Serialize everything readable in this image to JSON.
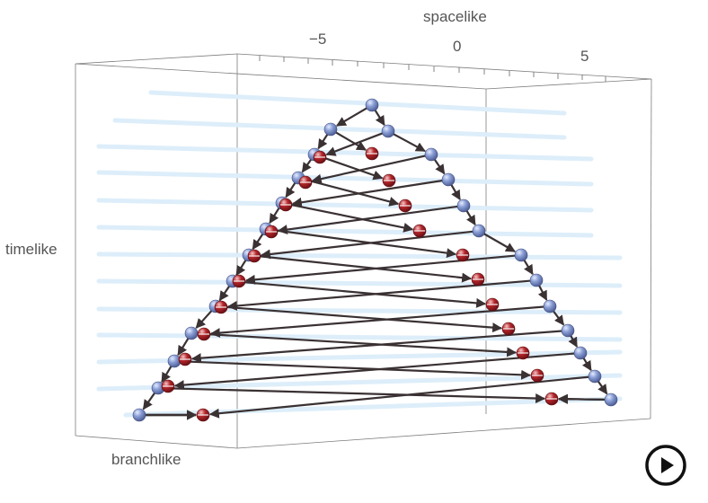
{
  "axes": {
    "spacelike": "spacelike",
    "timelike": "timelike",
    "branchlike": "branchlike",
    "spacelike_ticks": [
      "−5",
      "0",
      "5"
    ]
  },
  "colors": {
    "blue_node": "#8a9fd6",
    "red_node": "#b3262b",
    "edge": "#3a3133",
    "slice": "#ddeefa",
    "frame": "#666666"
  },
  "graph": {
    "nodes": [
      {
        "id": "n0",
        "kind": "blue"
      },
      {
        "id": "n1",
        "kind": "blue"
      },
      {
        "id": "n2",
        "kind": "blue"
      },
      {
        "id": "n3",
        "kind": "blue"
      },
      {
        "id": "n4",
        "kind": "blue"
      },
      {
        "id": "n5",
        "kind": "blue"
      },
      {
        "id": "n6",
        "kind": "blue"
      },
      {
        "id": "n7",
        "kind": "blue"
      },
      {
        "id": "n8",
        "kind": "blue"
      },
      {
        "id": "n9",
        "kind": "blue"
      },
      {
        "id": "n10",
        "kind": "blue"
      },
      {
        "id": "n11",
        "kind": "blue"
      },
      {
        "id": "n12",
        "kind": "blue"
      },
      {
        "id": "n13",
        "kind": "blue"
      },
      {
        "id": "n14",
        "kind": "blue"
      },
      {
        "id": "n15",
        "kind": "blue"
      },
      {
        "id": "n16",
        "kind": "blue"
      },
      {
        "id": "n17",
        "kind": "blue"
      },
      {
        "id": "n18",
        "kind": "blue"
      },
      {
        "id": "n19",
        "kind": "blue"
      },
      {
        "id": "n20",
        "kind": "blue"
      },
      {
        "id": "n21",
        "kind": "blue"
      },
      {
        "id": "n22",
        "kind": "blue"
      },
      {
        "id": "n23",
        "kind": "blue"
      },
      {
        "id": "n24",
        "kind": "blue"
      },
      {
        "id": "n25",
        "kind": "blue"
      },
      {
        "id": "n26",
        "kind": "blue"
      },
      {
        "id": "n27",
        "kind": "blue"
      },
      {
        "id": "n28",
        "kind": "blue"
      },
      {
        "id": "n29",
        "kind": "blue"
      },
      {
        "id": "r1",
        "kind": "red"
      },
      {
        "id": "r2",
        "kind": "red"
      },
      {
        "id": "r3",
        "kind": "red"
      },
      {
        "id": "r4",
        "kind": "red"
      },
      {
        "id": "r5",
        "kind": "red"
      },
      {
        "id": "r6",
        "kind": "red"
      },
      {
        "id": "r7",
        "kind": "red"
      },
      {
        "id": "r8",
        "kind": "red"
      },
      {
        "id": "r9",
        "kind": "red"
      },
      {
        "id": "r10",
        "kind": "red"
      },
      {
        "id": "r11",
        "kind": "red"
      },
      {
        "id": "r12",
        "kind": "red"
      },
      {
        "id": "r13",
        "kind": "red"
      },
      {
        "id": "r14",
        "kind": "red"
      },
      {
        "id": "r15",
        "kind": "red"
      },
      {
        "id": "r16",
        "kind": "red"
      },
      {
        "id": "r17",
        "kind": "red"
      },
      {
        "id": "r18",
        "kind": "red"
      },
      {
        "id": "r19",
        "kind": "red"
      },
      {
        "id": "r20",
        "kind": "red"
      },
      {
        "id": "r21",
        "kind": "red"
      },
      {
        "id": "r22",
        "kind": "red"
      },
      {
        "id": "r23",
        "kind": "red"
      },
      {
        "id": "r24",
        "kind": "red"
      },
      {
        "id": "r25",
        "kind": "red"
      },
      {
        "id": "r26",
        "kind": "red"
      },
      {
        "id": "r27",
        "kind": "red"
      },
      {
        "id": "r28",
        "kind": "red"
      },
      {
        "id": "r29",
        "kind": "red"
      }
    ],
    "edges": [
      [
        "n0",
        "n1"
      ],
      [
        "n0",
        "n2"
      ],
      [
        "n1",
        "n3"
      ],
      [
        "n1",
        "r1"
      ],
      [
        "n2",
        "n4"
      ],
      [
        "n2",
        "r2"
      ],
      [
        "n3",
        "n5"
      ],
      [
        "n3",
        "r3"
      ],
      [
        "n4",
        "n6"
      ],
      [
        "n4",
        "r4"
      ],
      [
        "n5",
        "n7"
      ],
      [
        "n5",
        "r5"
      ],
      [
        "n6",
        "n8"
      ],
      [
        "n6",
        "r6"
      ],
      [
        "n7",
        "n9"
      ],
      [
        "n7",
        "r7"
      ],
      [
        "n8",
        "n10"
      ],
      [
        "n8",
        "r8"
      ],
      [
        "n9",
        "n11"
      ],
      [
        "n9",
        "r9"
      ],
      [
        "n10",
        "n12"
      ],
      [
        "n10",
        "r10"
      ],
      [
        "n11",
        "n13"
      ],
      [
        "n11",
        "r11"
      ],
      [
        "n12",
        "n14"
      ],
      [
        "n12",
        "r12"
      ],
      [
        "n13",
        "n15"
      ],
      [
        "n13",
        "r13"
      ],
      [
        "n14",
        "n16"
      ],
      [
        "n14",
        "r14"
      ],
      [
        "n15",
        "n17"
      ],
      [
        "n15",
        "r15"
      ],
      [
        "n16",
        "n18"
      ],
      [
        "n16",
        "r16"
      ],
      [
        "n17",
        "n19"
      ],
      [
        "n17",
        "r17"
      ],
      [
        "n18",
        "n20"
      ],
      [
        "n18",
        "r18"
      ],
      [
        "n19",
        "n21"
      ],
      [
        "n19",
        "r19"
      ],
      [
        "n20",
        "n22"
      ],
      [
        "n20",
        "r20"
      ],
      [
        "n21",
        "n23"
      ],
      [
        "n21",
        "r21"
      ],
      [
        "n22",
        "n24"
      ],
      [
        "n22",
        "r22"
      ],
      [
        "n23",
        "n25"
      ],
      [
        "n23",
        "r23"
      ],
      [
        "n24",
        "n26"
      ],
      [
        "n24",
        "r24"
      ],
      [
        "n25",
        "n27"
      ],
      [
        "n25",
        "r25"
      ],
      [
        "n26",
        "n28"
      ],
      [
        "n26",
        "r26"
      ],
      [
        "n27",
        "n29"
      ],
      [
        "n27",
        "r27"
      ],
      [
        "n28",
        "r28"
      ],
      [
        "n29",
        "r29"
      ]
    ]
  },
  "controls": {
    "play_icon": "play-circle-icon"
  }
}
